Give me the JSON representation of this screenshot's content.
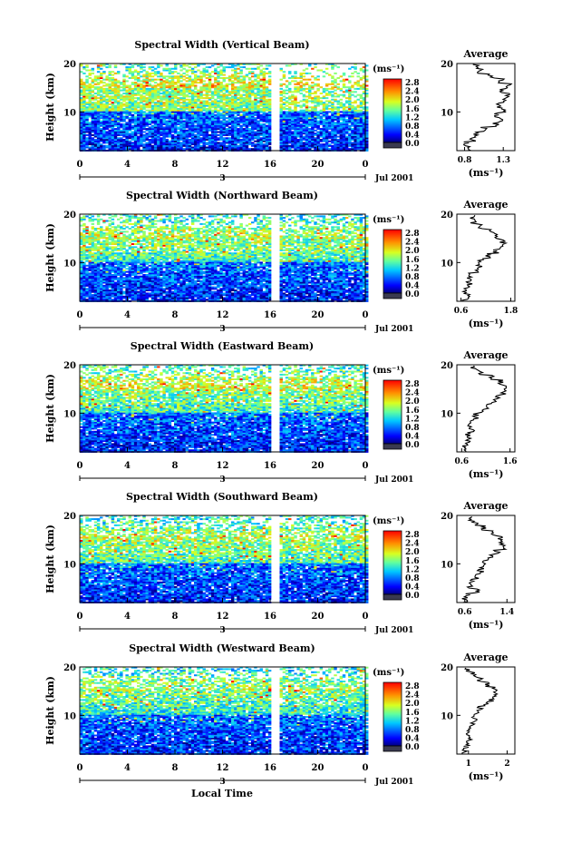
{
  "figure": {
    "xlabel": "Local Time",
    "ylabel": "Height (km)",
    "date_label": "Jul 2001",
    "day_marker": "3",
    "colorbar_units": "(ms⁻¹)",
    "colorbar_ticks": [
      "2.8",
      "2.4",
      "2.0",
      "1.6",
      "1.2",
      "0.8",
      "0.4",
      "0.0"
    ],
    "x_ticks": [
      "0",
      "4",
      "8",
      "12",
      "16",
      "20",
      "0"
    ],
    "y_ticks": [
      "20",
      "10"
    ],
    "avg_title": "Average",
    "avg_xlabel": "(ms⁻¹)"
  },
  "chart_data": [
    {
      "type": "heatmap",
      "title": "Spectral Width (Vertical Beam)",
      "xlabel": "Local Time",
      "ylabel": "Height (km)",
      "xlim": [
        0,
        24
      ],
      "ylim": [
        2,
        20
      ],
      "clim": [
        0,
        3.0
      ],
      "gap_hours": [
        16,
        16.4
      ],
      "profile": {
        "title": "Average",
        "xlabel": "(ms⁻¹)",
        "xticks": [
          "0.8",
          "1.3"
        ],
        "xlim": [
          0.7,
          1.45
        ],
        "heights": [
          2.5,
          3.5,
          4.5,
          5.5,
          6.5,
          7.5,
          8.5,
          9.5,
          10.5,
          11.5,
          12.5,
          13.5,
          14.5,
          15.5,
          16.5,
          17.5,
          18.5,
          19.5
        ],
        "values": [
          0.85,
          0.82,
          0.9,
          0.95,
          1.05,
          1.2,
          1.28,
          1.22,
          1.3,
          1.25,
          1.32,
          1.35,
          1.3,
          1.38,
          1.28,
          1.15,
          1.0,
          0.95
        ]
      }
    },
    {
      "type": "heatmap",
      "title": "Spectral Width (Northward Beam)",
      "xlabel": "Local Time",
      "ylabel": "Height (km)",
      "xlim": [
        0,
        24
      ],
      "ylim": [
        2,
        20
      ],
      "clim": [
        0,
        3.0
      ],
      "gap_hours": [
        16,
        16.4
      ],
      "profile": {
        "title": "Average",
        "xlabel": "(ms⁻¹)",
        "xticks": [
          "0.6",
          "1.8"
        ],
        "xlim": [
          0.5,
          1.9
        ],
        "heights": [
          2.5,
          3.5,
          4.5,
          5.5,
          6.5,
          7.5,
          8.5,
          9.5,
          10.5,
          11.5,
          12.5,
          13.5,
          14.5,
          15.5,
          16.5,
          17.5,
          18.5,
          19.5
        ],
        "values": [
          0.7,
          0.75,
          0.72,
          0.8,
          0.78,
          0.85,
          0.95,
          1.05,
          1.1,
          1.25,
          1.45,
          1.55,
          1.6,
          1.5,
          1.35,
          1.1,
          0.9,
          0.85
        ]
      }
    },
    {
      "type": "heatmap",
      "title": "Spectral Width (Eastward Beam)",
      "xlabel": "Local Time",
      "ylabel": "Height (km)",
      "xlim": [
        0,
        24
      ],
      "ylim": [
        2,
        20
      ],
      "clim": [
        0,
        3.0
      ],
      "gap_hours": [
        16,
        16.4
      ],
      "profile": {
        "title": "Average",
        "xlabel": "(ms⁻¹)",
        "xticks": [
          "0.6",
          "1.6"
        ],
        "xlim": [
          0.5,
          1.7
        ],
        "heights": [
          2.5,
          3.5,
          4.5,
          5.5,
          6.5,
          7.5,
          8.5,
          9.5,
          10.5,
          11.5,
          12.5,
          13.5,
          14.5,
          15.5,
          16.5,
          17.5,
          18.5,
          19.5
        ],
        "values": [
          0.7,
          0.68,
          0.75,
          0.72,
          0.8,
          0.75,
          0.82,
          0.9,
          1.0,
          1.1,
          1.25,
          1.35,
          1.45,
          1.5,
          1.4,
          1.2,
          1.0,
          0.85
        ]
      }
    },
    {
      "type": "heatmap",
      "title": "Spectral Width (Southward Beam)",
      "xlabel": "Local Time",
      "ylabel": "Height (km)",
      "xlim": [
        0,
        24
      ],
      "ylim": [
        2,
        20
      ],
      "clim": [
        0,
        3.0
      ],
      "gap_hours": [
        16,
        16.4
      ],
      "profile": {
        "title": "Average",
        "xlabel": "(ms⁻¹)",
        "xticks": [
          "0.6",
          "1.4"
        ],
        "xlim": [
          0.45,
          1.55
        ],
        "heights": [
          2.5,
          3.5,
          4.5,
          5.5,
          6.5,
          7.5,
          8.5,
          9.5,
          10.5,
          11.5,
          12.5,
          13.5,
          14.5,
          15.5,
          16.5,
          17.5,
          18.5,
          19.5
        ],
        "values": [
          0.6,
          0.65,
          0.85,
          0.7,
          0.75,
          0.8,
          0.9,
          0.95,
          1.0,
          1.1,
          1.2,
          1.35,
          1.3,
          1.25,
          1.1,
          0.95,
          0.8,
          0.7
        ]
      }
    },
    {
      "type": "heatmap",
      "title": "Spectral Width (Westward Beam)",
      "xlabel": "Local Time",
      "ylabel": "Height (km)",
      "xlim": [
        0,
        24
      ],
      "ylim": [
        2,
        20
      ],
      "clim": [
        0,
        3.0
      ],
      "gap_hours": [
        16,
        16.4
      ],
      "profile": {
        "title": "Average",
        "xlabel": "(ms⁻¹)",
        "xticks": [
          "1",
          "2"
        ],
        "xlim": [
          0.7,
          2.2
        ],
        "heights": [
          2.5,
          3.5,
          4.5,
          5.5,
          6.5,
          7.5,
          8.5,
          9.5,
          10.5,
          11.5,
          12.5,
          13.5,
          14.5,
          15.5,
          16.5,
          17.5,
          18.5,
          19.5
        ],
        "values": [
          0.9,
          0.95,
          0.92,
          1.0,
          0.98,
          1.05,
          1.1,
          1.15,
          1.2,
          1.3,
          1.45,
          1.6,
          1.7,
          1.65,
          1.5,
          1.3,
          1.1,
          1.0
        ]
      }
    }
  ]
}
